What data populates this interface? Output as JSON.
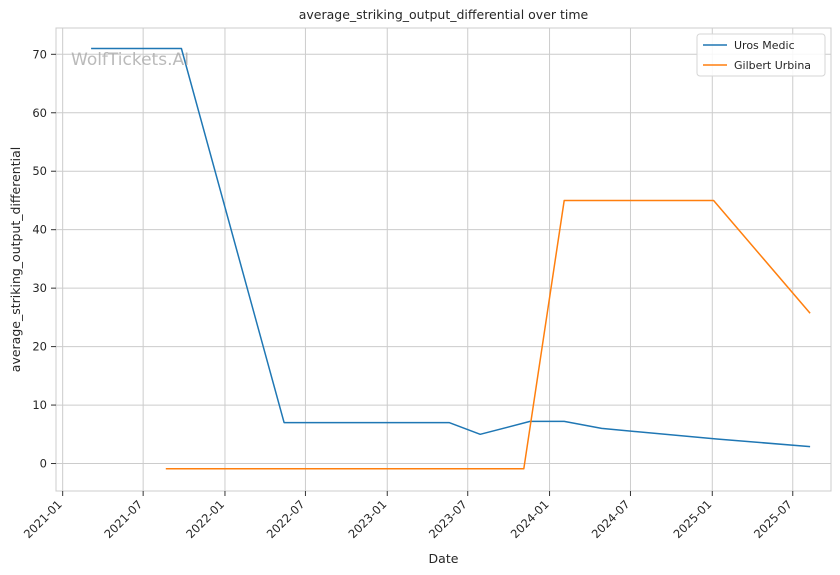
{
  "chart_data": {
    "type": "line",
    "title": "average_striking_output_differential over time",
    "xlabel": "Date",
    "ylabel": "average_striking_output_differential",
    "watermark": "WolfTickets.AI",
    "x_ticks": [
      "2021-01",
      "2021-07",
      "2022-01",
      "2022-07",
      "2023-01",
      "2023-07",
      "2024-01",
      "2024-07",
      "2025-01",
      "2025-07"
    ],
    "y_ticks": [
      0,
      10,
      20,
      30,
      40,
      50,
      60,
      70
    ],
    "xlim": [
      "2020-12-17",
      "2025-09-25"
    ],
    "ylim": [
      -4.7,
      74.5
    ],
    "grid": true,
    "legend_position": "top-right",
    "series": [
      {
        "name": "Uros Medic",
        "color": "#1f77b4",
        "points": [
          [
            "2021-03-06",
            71
          ],
          [
            "2021-09-25",
            71
          ],
          [
            "2022-05-14",
            7
          ],
          [
            "2023-05-20",
            7
          ],
          [
            "2023-07-29",
            5
          ],
          [
            "2023-11-18",
            7.2
          ],
          [
            "2024-02-03",
            7.2
          ],
          [
            "2024-04-27",
            6
          ],
          [
            "2025-01-11",
            4.2
          ],
          [
            "2025-08-09",
            2.9
          ]
        ]
      },
      {
        "name": "Gilbert Urbina",
        "color": "#ff7f0e",
        "points": [
          [
            "2021-08-21",
            -0.9
          ],
          [
            "2023-11-04",
            -0.9
          ],
          [
            "2024-02-03",
            45
          ],
          [
            "2025-01-04",
            45
          ],
          [
            "2025-08-09",
            25.7
          ]
        ]
      }
    ]
  }
}
